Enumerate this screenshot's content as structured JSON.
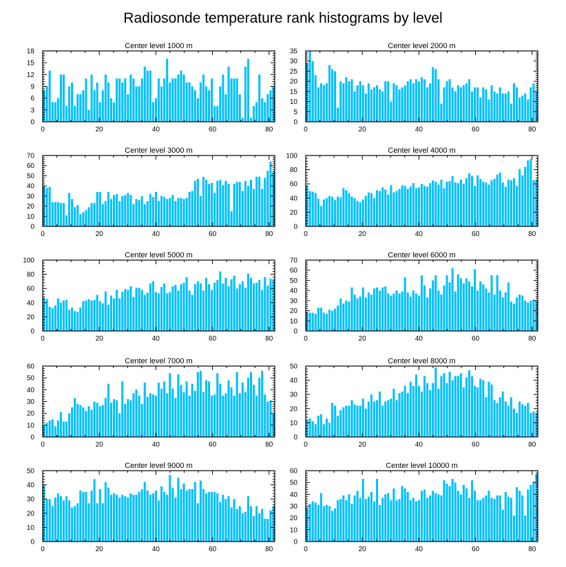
{
  "figure": {
    "title": "Radiosonde temperature rank histograms by level",
    "bar_color": "#00bfff"
  },
  "chart_data": [
    {
      "type": "bar",
      "title": "Center level 1000 m",
      "xlabel": "",
      "ylabel": "",
      "xlim": [
        0,
        82
      ],
      "xticks": [
        0,
        20,
        40,
        60,
        80
      ],
      "ylim": [
        0,
        18
      ],
      "yticks": [
        0,
        3,
        6,
        9,
        12,
        15,
        18
      ],
      "values": [
        8,
        9,
        13,
        5,
        5,
        6,
        12,
        12,
        4,
        9,
        10,
        4,
        7,
        7,
        8,
        11,
        3,
        12,
        8,
        10,
        5,
        8,
        12,
        10,
        6,
        5,
        11,
        11,
        10,
        11,
        7,
        12,
        11,
        9,
        9,
        11,
        14,
        13,
        13,
        5,
        6,
        11,
        9,
        11,
        16,
        10,
        11,
        11,
        12,
        13,
        12,
        10,
        10,
        9,
        8,
        6,
        10,
        12,
        9,
        8,
        11,
        4,
        4,
        9,
        12,
        7,
        14,
        11,
        11,
        11,
        7,
        1,
        14,
        16,
        1,
        4,
        5,
        12,
        6,
        5,
        7,
        8,
        9
      ]
    },
    {
      "type": "bar",
      "title": "Center level 2000 m",
      "xlabel": "",
      "ylabel": "",
      "xlim": [
        0,
        82
      ],
      "xticks": [
        0,
        20,
        40,
        60,
        80
      ],
      "ylim": [
        0,
        35
      ],
      "yticks": [
        0,
        5,
        10,
        15,
        20,
        25,
        30,
        35
      ],
      "values": [
        29,
        35,
        30,
        23,
        17,
        19,
        18,
        19,
        28,
        26,
        25,
        7,
        20,
        19,
        22,
        20,
        21,
        15,
        18,
        20,
        18,
        14,
        19,
        16,
        17,
        18,
        16,
        15,
        20,
        20,
        10,
        19,
        18,
        16,
        17,
        18,
        20,
        21,
        19,
        21,
        20,
        22,
        21,
        17,
        19,
        27,
        26,
        21,
        9,
        17,
        20,
        21,
        17,
        15,
        18,
        17,
        18,
        19,
        21,
        15,
        17,
        17,
        12,
        17,
        16,
        11,
        18,
        15,
        14,
        17,
        14,
        14,
        15,
        9,
        19,
        17,
        12,
        13,
        14,
        11,
        17,
        19,
        15
      ]
    },
    {
      "type": "bar",
      "title": "Center level 3000 m",
      "xlabel": "",
      "ylabel": "",
      "xlim": [
        0,
        82
      ],
      "xticks": [
        0,
        20,
        40,
        60,
        80
      ],
      "ylim": [
        0,
        70
      ],
      "yticks": [
        0,
        10,
        20,
        30,
        40,
        50,
        60,
        70
      ],
      "values": [
        40,
        38,
        39,
        24,
        24,
        24,
        23,
        23,
        11,
        33,
        27,
        19,
        21,
        12,
        14,
        16,
        19,
        23,
        23,
        34,
        34,
        22,
        25,
        34,
        27,
        31,
        32,
        25,
        30,
        31,
        33,
        31,
        22,
        27,
        26,
        30,
        22,
        25,
        32,
        29,
        34,
        25,
        30,
        29,
        27,
        28,
        31,
        25,
        28,
        28,
        27,
        28,
        34,
        35,
        45,
        47,
        30,
        49,
        46,
        42,
        43,
        33,
        45,
        46,
        41,
        45,
        42,
        15,
        42,
        44,
        44,
        35,
        45,
        40,
        46,
        37,
        49,
        49,
        37,
        48,
        55,
        64,
        54
      ]
    },
    {
      "type": "bar",
      "title": "Center level 4000 m",
      "xlabel": "",
      "ylabel": "",
      "xlim": [
        0,
        82
      ],
      "xticks": [
        0,
        20,
        40,
        60,
        80
      ],
      "ylim": [
        0,
        100
      ],
      "yticks": [
        0,
        20,
        40,
        60,
        80,
        100
      ],
      "values": [
        58,
        50,
        49,
        47,
        39,
        29,
        38,
        40,
        43,
        42,
        37,
        42,
        41,
        54,
        51,
        47,
        42,
        40,
        36,
        34,
        38,
        43,
        48,
        47,
        40,
        51,
        50,
        55,
        52,
        45,
        58,
        48,
        50,
        53,
        58,
        57,
        53,
        56,
        61,
        54,
        55,
        60,
        57,
        56,
        61,
        65,
        63,
        59,
        66,
        54,
        63,
        64,
        71,
        62,
        61,
        66,
        60,
        68,
        75,
        71,
        57,
        72,
        67,
        63,
        62,
        59,
        65,
        67,
        73,
        76,
        62,
        56,
        66,
        65,
        68,
        57,
        81,
        72,
        84,
        93,
        95,
        65,
        66
      ]
    },
    {
      "type": "bar",
      "title": "Center level 5000 m",
      "xlabel": "",
      "ylabel": "",
      "xlim": [
        0,
        82
      ],
      "xticks": [
        0,
        20,
        40,
        60,
        80
      ],
      "ylim": [
        0,
        100
      ],
      "yticks": [
        0,
        20,
        40,
        60,
        80,
        100
      ],
      "values": [
        47,
        45,
        34,
        32,
        36,
        46,
        40,
        43,
        44,
        30,
        33,
        28,
        27,
        33,
        42,
        43,
        45,
        43,
        44,
        51,
        42,
        39,
        56,
        37,
        50,
        46,
        58,
        46,
        55,
        59,
        58,
        63,
        48,
        61,
        61,
        58,
        51,
        54,
        67,
        70,
        55,
        53,
        62,
        67,
        53,
        55,
        63,
        65,
        57,
        66,
        68,
        76,
        57,
        51,
        66,
        70,
        67,
        57,
        75,
        66,
        58,
        68,
        72,
        84,
        67,
        75,
        63,
        73,
        78,
        60,
        66,
        70,
        61,
        81,
        75,
        67,
        68,
        72,
        58,
        76,
        64,
        74,
        72
      ]
    },
    {
      "type": "bar",
      "title": "Center level 6000 m",
      "xlabel": "",
      "ylabel": "",
      "xlim": [
        0,
        82
      ],
      "xticks": [
        0,
        20,
        40,
        60,
        80
      ],
      "ylim": [
        0,
        70
      ],
      "yticks": [
        0,
        10,
        20,
        30,
        40,
        50,
        60,
        70
      ],
      "values": [
        19,
        18,
        18,
        17,
        23,
        23,
        18,
        17,
        21,
        20,
        22,
        25,
        32,
        27,
        30,
        29,
        43,
        36,
        32,
        34,
        43,
        33,
        38,
        36,
        42,
        43,
        40,
        43,
        44,
        37,
        35,
        37,
        40,
        37,
        39,
        53,
        38,
        34,
        40,
        37,
        35,
        55,
        45,
        33,
        42,
        50,
        55,
        40,
        36,
        45,
        55,
        48,
        62,
        39,
        56,
        52,
        47,
        52,
        49,
        44,
        61,
        40,
        49,
        46,
        42,
        38,
        55,
        36,
        55,
        40,
        33,
        38,
        48,
        29,
        27,
        33,
        36,
        35,
        30,
        28,
        30,
        31,
        30
      ]
    },
    {
      "type": "bar",
      "title": "Center level 7000 m",
      "xlabel": "",
      "ylabel": "",
      "xlim": [
        0,
        82
      ],
      "xticks": [
        0,
        20,
        40,
        60,
        80
      ],
      "ylim": [
        0,
        60
      ],
      "yticks": [
        0,
        10,
        20,
        30,
        40,
        50,
        60
      ],
      "values": [
        10,
        12,
        14,
        15,
        9,
        14,
        21,
        13,
        13,
        20,
        25,
        33,
        28,
        27,
        25,
        22,
        26,
        23,
        30,
        29,
        26,
        27,
        33,
        45,
        29,
        32,
        31,
        20,
        47,
        28,
        32,
        31,
        37,
        40,
        35,
        28,
        46,
        34,
        37,
        36,
        35,
        46,
        41,
        47,
        37,
        54,
        41,
        33,
        53,
        44,
        38,
        47,
        35,
        45,
        39,
        55,
        56,
        38,
        48,
        47,
        35,
        36,
        54,
        45,
        35,
        37,
        48,
        42,
        35,
        55,
        37,
        46,
        38,
        50,
        55,
        44,
        35,
        50,
        56,
        36,
        30,
        31,
        20
      ]
    },
    {
      "type": "bar",
      "title": "Center level 8000 m",
      "xlabel": "",
      "ylabel": "",
      "xlim": [
        0,
        82
      ],
      "xticks": [
        0,
        20,
        40,
        60,
        80
      ],
      "ylim": [
        0,
        50
      ],
      "yticks": [
        0,
        10,
        20,
        30,
        40,
        50
      ],
      "values": [
        12,
        13,
        11,
        9,
        15,
        16,
        9,
        13,
        10,
        24,
        22,
        15,
        19,
        21,
        22,
        22,
        26,
        23,
        22,
        22,
        27,
        20,
        25,
        30,
        25,
        26,
        32,
        22,
        25,
        26,
        27,
        34,
        26,
        31,
        32,
        36,
        31,
        39,
        36,
        44,
        36,
        32,
        43,
        38,
        33,
        38,
        49,
        34,
        43,
        45,
        38,
        46,
        40,
        43,
        43,
        45,
        35,
        42,
        47,
        43,
        36,
        35,
        41,
        40,
        28,
        39,
        37,
        26,
        24,
        28,
        32,
        25,
        22,
        28,
        20,
        17,
        25,
        23,
        22,
        24,
        17,
        18,
        17
      ]
    },
    {
      "type": "bar",
      "title": "Center level 9000 m",
      "xlabel": "",
      "ylabel": "",
      "xlim": [
        0,
        82
      ],
      "xticks": [
        0,
        20,
        40,
        60,
        80
      ],
      "ylim": [
        0,
        50
      ],
      "yticks": [
        0,
        10,
        20,
        30,
        40,
        50
      ],
      "values": [
        40,
        30,
        30,
        25,
        31,
        34,
        32,
        29,
        32,
        29,
        24,
        25,
        27,
        36,
        35,
        35,
        27,
        36,
        44,
        27,
        37,
        27,
        42,
        38,
        33,
        34,
        33,
        31,
        33,
        32,
        31,
        34,
        33,
        33,
        35,
        37,
        42,
        36,
        33,
        34,
        36,
        29,
        39,
        35,
        33,
        47,
        38,
        31,
        45,
        37,
        41,
        36,
        37,
        37,
        42,
        27,
        43,
        37,
        34,
        35,
        35,
        35,
        34,
        28,
        33,
        30,
        32,
        24,
        30,
        23,
        25,
        20,
        21,
        32,
        25,
        18,
        25,
        20,
        23,
        16,
        16,
        22,
        25
      ]
    },
    {
      "type": "bar",
      "title": "Center level 10000 m",
      "xlabel": "",
      "ylabel": "",
      "xlim": [
        0,
        82
      ],
      "xticks": [
        0,
        20,
        40,
        60,
        80
      ],
      "ylim": [
        0,
        60
      ],
      "yticks": [
        0,
        10,
        20,
        30,
        40,
        50,
        60
      ],
      "values": [
        29,
        32,
        34,
        33,
        31,
        41,
        30,
        31,
        30,
        26,
        28,
        35,
        36,
        39,
        35,
        40,
        32,
        39,
        43,
        37,
        53,
        36,
        38,
        42,
        34,
        53,
        31,
        37,
        40,
        41,
        35,
        45,
        35,
        36,
        47,
        45,
        42,
        35,
        37,
        34,
        35,
        43,
        44,
        37,
        39,
        43,
        41,
        40,
        39,
        52,
        49,
        47,
        53,
        50,
        43,
        40,
        48,
        45,
        37,
        52,
        43,
        35,
        35,
        37,
        39,
        43,
        37,
        36,
        39,
        39,
        27,
        42,
        38,
        37,
        22,
        46,
        43,
        39,
        22,
        44,
        48,
        51,
        57
      ]
    }
  ]
}
